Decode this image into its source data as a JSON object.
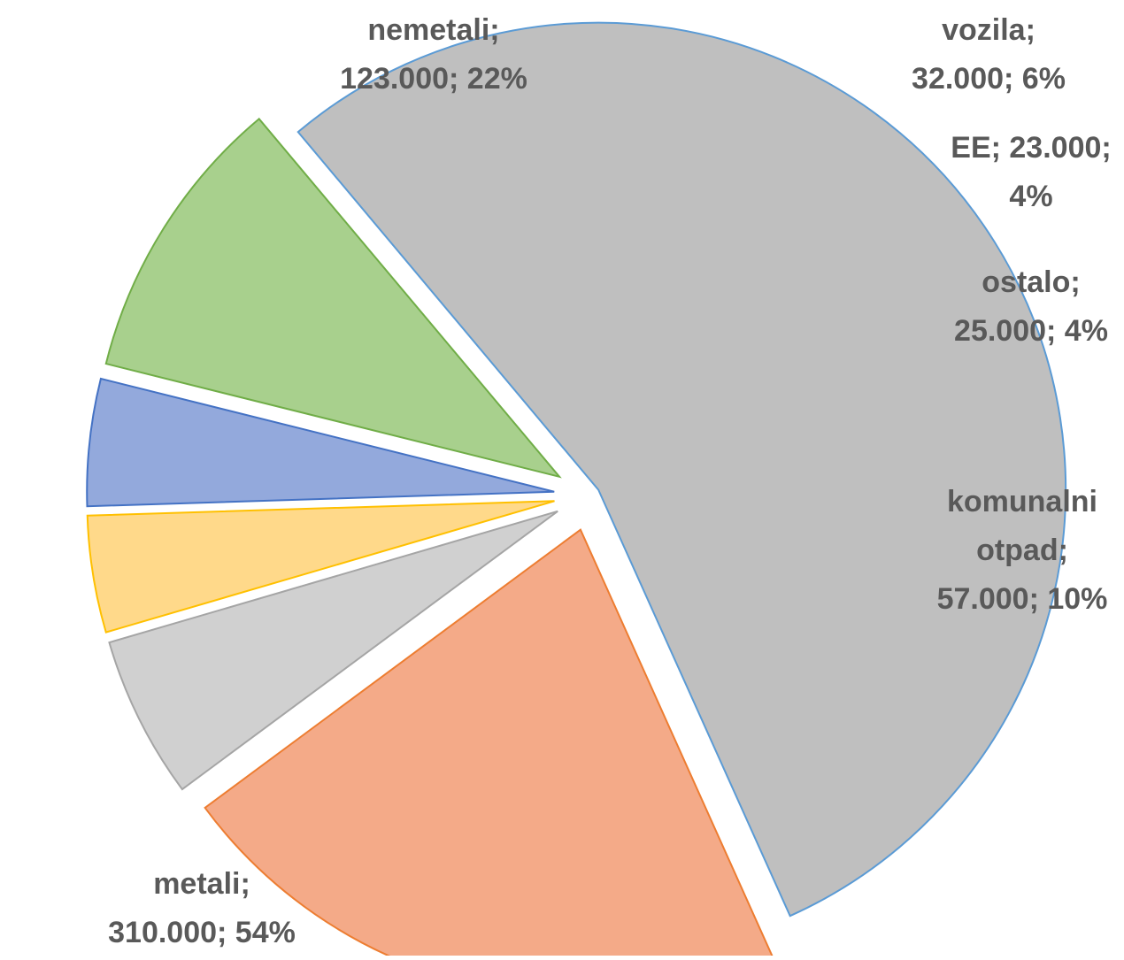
{
  "chart_data": {
    "type": "pie",
    "title": "",
    "slices": [
      {
        "name": "metali",
        "value": 310000,
        "value_label": "310.000",
        "percent_label": "54%",
        "label_lines": [
          "metali;",
          "310.000; 54%"
        ],
        "fill": "#BFBFBF",
        "stroke": "#5B9BD5"
      },
      {
        "name": "nemetali",
        "value": 123000,
        "value_label": "123.000",
        "percent_label": "22%",
        "label_lines": [
          "nemetali;",
          "123.000; 22%"
        ],
        "fill": "#F4AA88",
        "stroke": "#ED7D31"
      },
      {
        "name": "vozila",
        "value": 32000,
        "value_label": "32.000",
        "percent_label": "6%",
        "label_lines": [
          "vozila;",
          "32.000; 6%"
        ],
        "fill": "#D0D0D0",
        "stroke": "#A5A5A5"
      },
      {
        "name": "EE",
        "value": 23000,
        "value_label": "23.000",
        "percent_label": "4%",
        "label_lines": [
          "EE; 23.000;",
          "4%"
        ],
        "fill": "#FFD98A",
        "stroke": "#FFC000"
      },
      {
        "name": "ostalo",
        "value": 25000,
        "value_label": "25.000",
        "percent_label": "4%",
        "label_lines": [
          "ostalo;",
          "25.000; 4%"
        ],
        "fill": "#93A9DC",
        "stroke": "#4472C4"
      },
      {
        "name": "komunalni otpad",
        "value": 57000,
        "value_label": "57.000",
        "percent_label": "10%",
        "label_lines": [
          "komunalni",
          "otpad;",
          "57.000; 10%"
        ],
        "fill": "#A8D08D",
        "stroke": "#70AD47"
      }
    ]
  }
}
